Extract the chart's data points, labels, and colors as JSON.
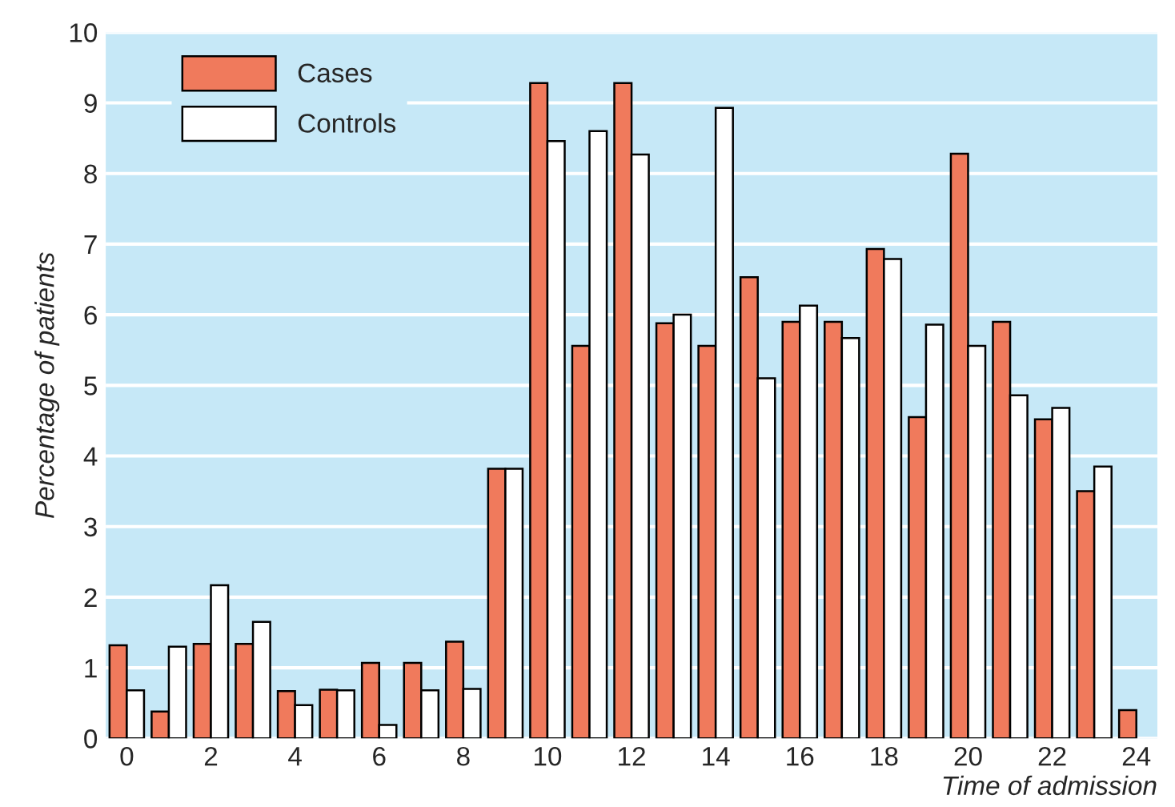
{
  "chart_data": {
    "type": "bar",
    "xlabel": "Time of admission",
    "ylabel": "Percentage of patients",
    "categories": [
      "0",
      null,
      "2",
      null,
      "4",
      null,
      "6",
      null,
      "8",
      null,
      "10",
      null,
      "12",
      null,
      "14",
      null,
      "16",
      null,
      "18",
      null,
      "20",
      null,
      "22",
      null,
      "24"
    ],
    "series": [
      {
        "name": "Cases",
        "color": "#f07a5c",
        "values": [
          1.32,
          0.38,
          1.34,
          1.34,
          0.67,
          0.69,
          1.07,
          1.07,
          1.37,
          3.82,
          9.28,
          5.56,
          9.28,
          5.88,
          5.56,
          6.53,
          5.9,
          5.9,
          6.93,
          4.55,
          8.28,
          5.9,
          4.52,
          3.5,
          0.4
        ]
      },
      {
        "name": "Controls",
        "color": "#ffffff",
        "values": [
          0.68,
          1.3,
          2.17,
          1.65,
          0.47,
          0.68,
          0.19,
          0.68,
          0.7,
          3.82,
          8.46,
          8.6,
          8.27,
          6.0,
          8.93,
          5.1,
          6.13,
          5.67,
          6.79,
          5.86,
          5.56,
          4.86,
          4.68,
          3.85,
          null
        ]
      }
    ],
    "ylim": [
      0,
      10
    ],
    "yticks": [
      0,
      1,
      2,
      3,
      4,
      5,
      6,
      7,
      8,
      9,
      10
    ],
    "grid": "y",
    "legend": "top left"
  }
}
